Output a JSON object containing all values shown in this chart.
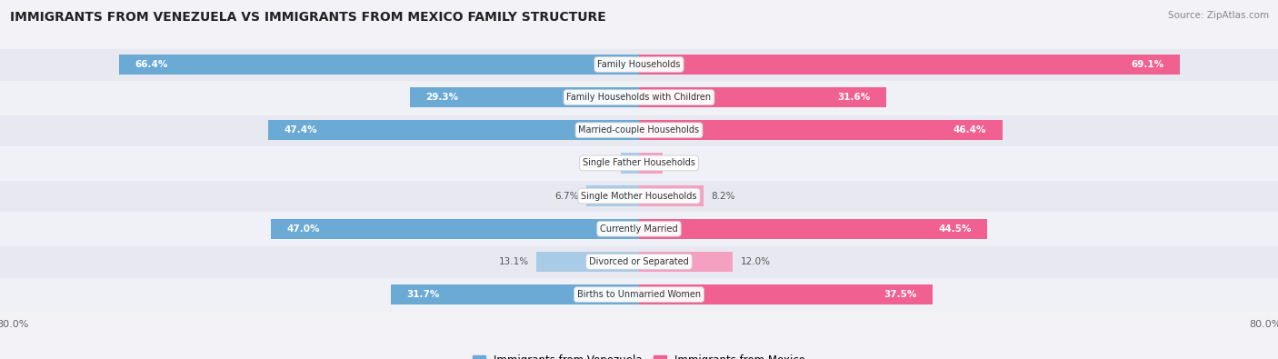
{
  "title": "IMMIGRANTS FROM VENEZUELA VS IMMIGRANTS FROM MEXICO FAMILY STRUCTURE",
  "source": "Source: ZipAtlas.com",
  "categories": [
    "Family Households",
    "Family Households with Children",
    "Married-couple Households",
    "Single Father Households",
    "Single Mother Households",
    "Currently Married",
    "Divorced or Separated",
    "Births to Unmarried Women"
  ],
  "venezuela_values": [
    66.4,
    29.3,
    47.4,
    2.3,
    6.7,
    47.0,
    13.1,
    31.7
  ],
  "mexico_values": [
    69.1,
    31.6,
    46.4,
    3.0,
    8.2,
    44.5,
    12.0,
    37.5
  ],
  "venezuela_color_dark": "#6aaad4",
  "venezuela_color_light": "#a8cce8",
  "mexico_color_dark": "#f06090",
  "mexico_color_light": "#f5a0c0",
  "axis_max": 80.0,
  "bg_color": "#f2f2f7",
  "row_colors": [
    "#e8e8f0",
    "#f0f0f7"
  ],
  "legend_venezuela": "Immigrants from Venezuela",
  "legend_mexico": "Immigrants from Mexico",
  "bar_height": 0.62,
  "label_threshold": 15
}
